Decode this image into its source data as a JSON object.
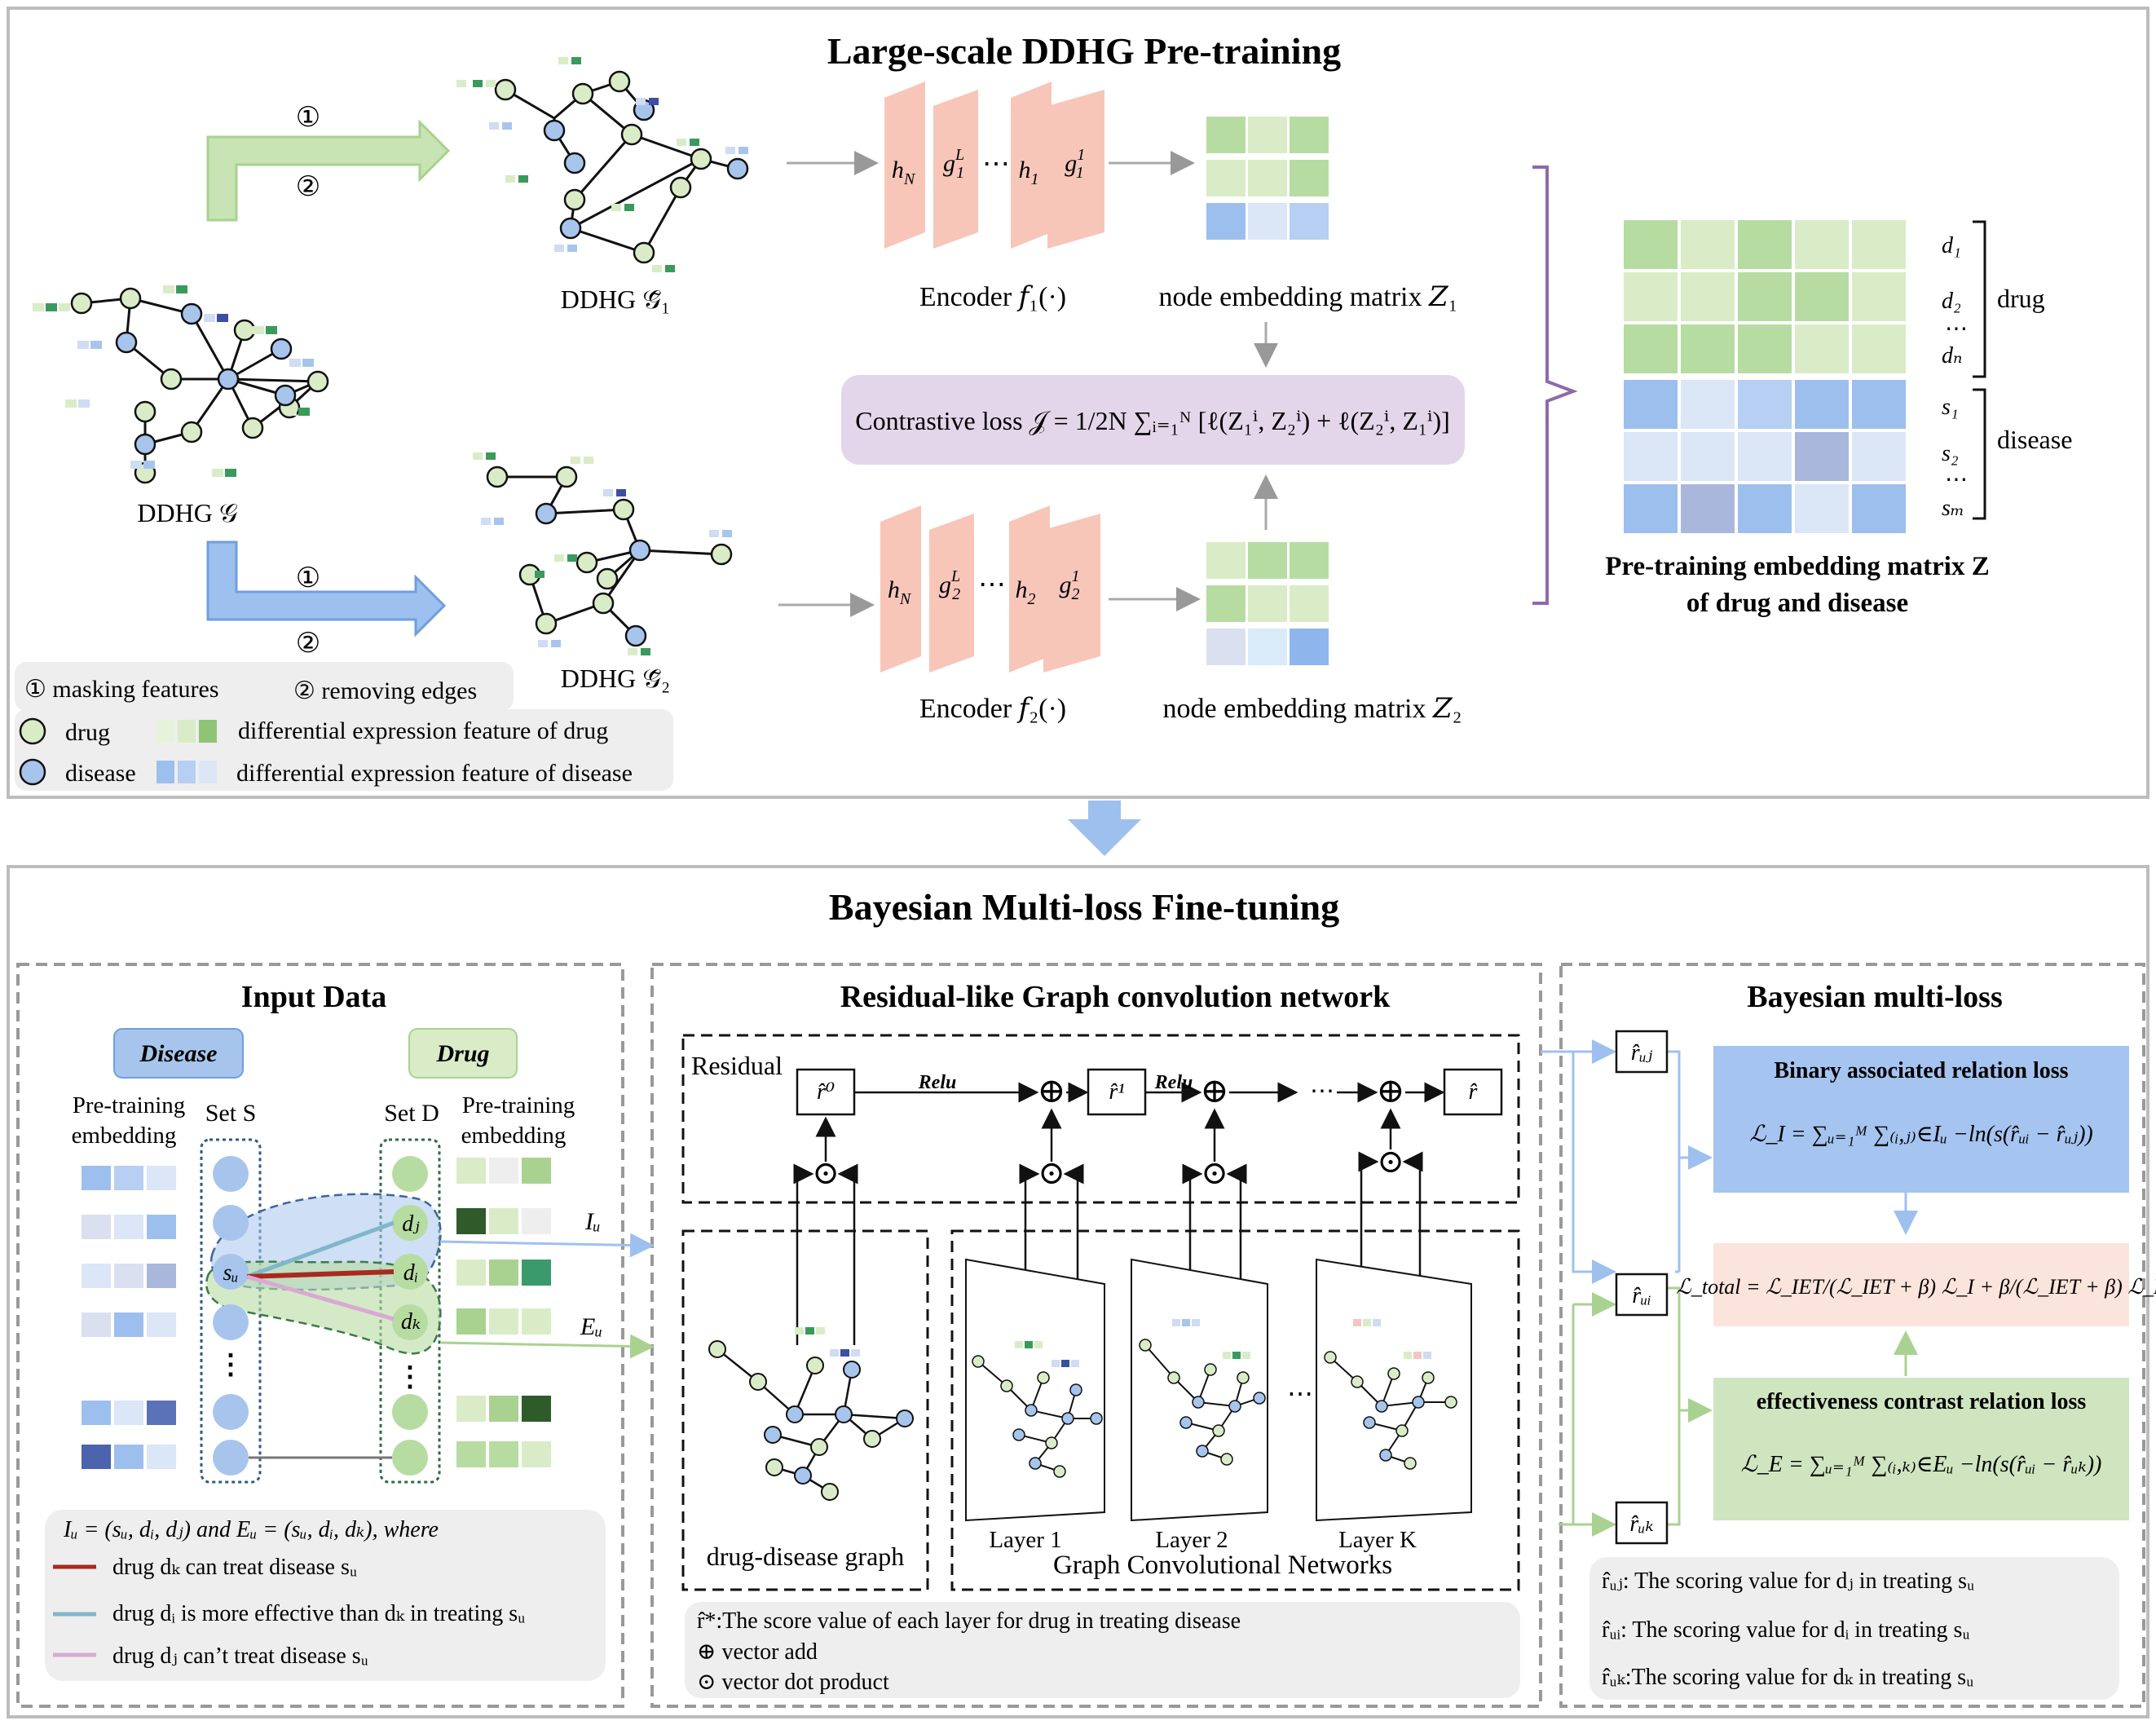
{
  "top_panel": {
    "title": "Large-scale DDHG Pre-training",
    "step1": "①",
    "step2": "②",
    "graph_g_label": "DDHG 𝒢",
    "graph_g1_label": "DDHG 𝒢̃₁",
    "graph_g2_label": "DDHG 𝒢̃₂",
    "encoder1_cells": [
      "h",
      "g",
      "⋯",
      "h",
      "g"
    ],
    "encoder2_cells": [
      "h",
      "g",
      "⋯",
      "h",
      "g"
    ],
    "encoder1_label": "Encoder 𝑓₁(·)",
    "encoder2_label": "Encoder 𝑓₂(·)",
    "emb1_label": "node embedding matrix 𝑍₁",
    "emb2_label": "node embedding matrix  𝑍₂",
    "contrastive_loss": "Contrastive loss  𝒥 = 1/2N ∑ᵢ₌₁ᴺ [ℓ(Z₁ⁱ, Z₂ⁱ) + ℓ(Z₂ⁱ, Z₁ⁱ)]",
    "matrix_title_line1": "Pre-training embedding matrix Z",
    "matrix_title_line2": "of drug and disease",
    "row_labels": [
      "d₁",
      "d₂",
      "⋯",
      "dₙ",
      "s₁",
      "s₂",
      "⋯",
      "sₘ"
    ],
    "drug_brace_label": "drug",
    "disease_brace_label": "disease",
    "legend": {
      "masking": "① masking features",
      "removing": "② removing edges",
      "drug": "drug",
      "disease": "disease",
      "drug_feature": "differential expression feature of drug",
      "disease_feature": "differential expression feature of disease"
    }
  },
  "bottom_panel": {
    "title": "Bayesian Multi-loss Fine-tuning",
    "input": {
      "title": "Input Data",
      "disease_btn": "Disease",
      "drug_btn": "Drug",
      "left_emb_line1": "Pre-training",
      "left_emb_line2": "embedding",
      "set_s": "Set S",
      "set_d": "Set D",
      "right_emb_line1": "Pre-training",
      "right_emb_line2": "embedding",
      "su": "sᵤ",
      "dj": "dⱼ",
      "di": "dᵢ",
      "dk": "dₖ",
      "iu": "Iᵤ",
      "eu": "Eᵤ",
      "note_formula": "Iᵤ = (sᵤ, dᵢ, dⱼ) and Eᵤ = (sᵤ, dᵢ, dₖ), where",
      "note1": "drug dₖ can treat disease sᵤ",
      "note2": "drug dᵢ is more effective than dₖ in treating sᵤ",
      "note3": "drug dⱼ can’t treat disease sᵤ",
      "colors": {
        "treat": "#a82a1e",
        "effective": "#80b6c9",
        "cant": "#d9a9d3"
      }
    },
    "gcn": {
      "title": "Residual-like Graph convolution network",
      "residual": "Residual",
      "r0": "r̂⁰",
      "r1": "r̂¹",
      "rfinal": "r̂",
      "relu": "Relu",
      "ellipsis": "⋯",
      "graph_label": "drug-disease graph",
      "layer1": "Layer 1",
      "layer2": "Layer 2",
      "layerk": "Layer K",
      "gcn_label": "Graph Convolutional Networks",
      "note1": "r̂*:The score value of each layer for drug in treating disease",
      "note2": "⊕ vector add",
      "note3": "⊙ vector dot product"
    },
    "bayes": {
      "title": "Bayesian multi-loss",
      "ruj": "r̂ᵤⱼ",
      "rui": "r̂ᵤᵢ",
      "ruk": "r̂ᵤₖ",
      "binary_title": "Binary associated relation loss",
      "binary_formula": "ℒ_I = ∑ᵤ₌₁ᴹ ∑₍ᵢ,ⱼ₎∈Iᵤ −ln(s(r̂ᵤᵢ − r̂ᵤⱼ))",
      "total_formula": "ℒ_total = ℒ_IET/(ℒ_IET + β) ℒ_I + β/(ℒ_IET + β) ℒ_E",
      "eff_title": "effectiveness contrast relation loss",
      "eff_formula": "ℒ_E = ∑ᵤ₌₁ᴹ ∑₍ᵢ,ₖ₎∈Eᵤ −ln(s(r̂ᵤᵢ − r̂ᵤₖ))",
      "note1": "r̂ᵤⱼ: The scoring value for dⱼ in treating sᵤ",
      "note2": "r̂ᵤᵢ: The scoring value for dᵢ in treating  sᵤ",
      "note3": "r̂ᵤₖ:The scoring value for dₖ in treating  sᵤ"
    }
  },
  "colors": {
    "drug_node": "#d9ecc7",
    "disease_node": "#a7c5ec",
    "encoder": "#f7c6b9",
    "contrastive_box": "#e3d6ea",
    "binary_box": "#a5c4f0",
    "total_box": "#fbe4dc",
    "eff_box": "#cfe5c0",
    "arrow_green": "#c8e3b4",
    "arrow_blue": "#9ec0ee"
  }
}
